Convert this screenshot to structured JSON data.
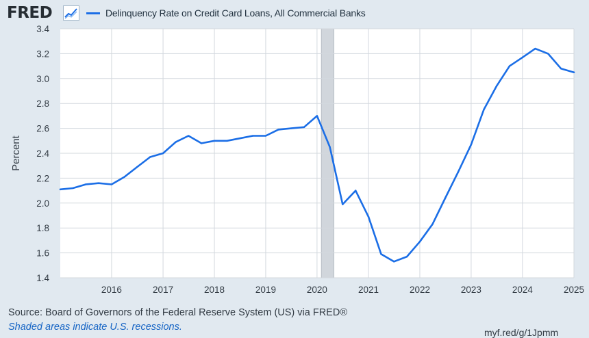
{
  "header": {
    "logo_text": "FRED",
    "logo_icon": "graph-icon",
    "legend_label": "Delinquency Rate on Credit Card Loans, All Commercial Banks",
    "series_color": "#1b6ee6"
  },
  "footer": {
    "source": "Source: Board of Governors of the Federal Reserve System (US) via FRED®",
    "note": "Shaded areas indicate U.S. recessions.",
    "link": "myf.red/g/1Jpmm"
  },
  "chart_data": {
    "type": "line",
    "title": "",
    "xlabel": "",
    "ylabel": "Percent",
    "ylim": [
      1.4,
      3.4
    ],
    "xlim": [
      "2015-01-01",
      "2025-01-01"
    ],
    "yticks": [
      "1.4",
      "1.6",
      "1.8",
      "2.0",
      "2.2",
      "2.4",
      "2.6",
      "2.8",
      "3.0",
      "3.2",
      "3.4"
    ],
    "xticks": [
      "2016",
      "2017",
      "2018",
      "2019",
      "2020",
      "2021",
      "2022",
      "2023",
      "2024",
      "2025"
    ],
    "grid": true,
    "legend_position": "top",
    "recession_shading": [
      {
        "start": "2020-02-01",
        "end": "2020-04-30"
      }
    ],
    "series": [
      {
        "name": "Delinquency Rate on Credit Card Loans, All Commercial Banks",
        "color": "#1b6ee6",
        "x": [
          "2015-01-01",
          "2015-04-01",
          "2015-07-01",
          "2015-10-01",
          "2016-01-01",
          "2016-04-01",
          "2016-07-01",
          "2016-10-01",
          "2017-01-01",
          "2017-04-01",
          "2017-07-01",
          "2017-10-01",
          "2018-01-01",
          "2018-04-01",
          "2018-07-01",
          "2018-10-01",
          "2019-01-01",
          "2019-04-01",
          "2019-07-01",
          "2019-10-01",
          "2020-01-01",
          "2020-04-01",
          "2020-07-01",
          "2020-10-01",
          "2021-01-01",
          "2021-04-01",
          "2021-07-01",
          "2021-10-01",
          "2022-01-01",
          "2022-04-01",
          "2022-07-01",
          "2022-10-01",
          "2023-01-01",
          "2023-04-01",
          "2023-07-01",
          "2023-10-01",
          "2024-01-01",
          "2024-04-01",
          "2024-07-01",
          "2024-10-01",
          "2025-01-01"
        ],
        "values": [
          2.11,
          2.12,
          2.15,
          2.16,
          2.15,
          2.21,
          2.29,
          2.37,
          2.4,
          2.49,
          2.54,
          2.48,
          2.5,
          2.5,
          2.52,
          2.54,
          2.54,
          2.59,
          2.6,
          2.61,
          2.7,
          2.45,
          1.99,
          2.1,
          1.89,
          1.59,
          1.53,
          1.57,
          1.69,
          1.83,
          2.04,
          2.25,
          2.47,
          2.75,
          2.94,
          3.1,
          3.17,
          3.24,
          3.2,
          3.08,
          3.05
        ]
      }
    ]
  }
}
